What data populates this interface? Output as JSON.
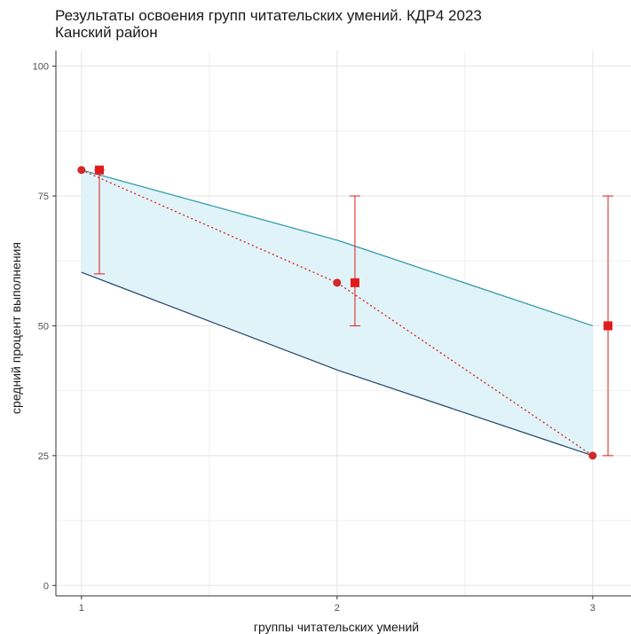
{
  "title_line1": "Результаты освоения групп читательских умений. КДР4 2023",
  "title_line2": "Канский район",
  "colors": {
    "band_fill": "#dff3f8",
    "upper_line": "#2b97a8",
    "lower_line": "#28456b",
    "accent": "#e11b1b",
    "dot": "#d12a2a"
  },
  "chart_data": {
    "type": "line",
    "title": "Результаты освоения групп читательских умений. КДР4 2023",
    "subtitle": "Канский район",
    "xlabel": "группы читательских умений",
    "ylabel": "средний процент выполнения",
    "x_ticks": [
      "1",
      "2",
      "3"
    ],
    "y_ticks": [
      "0",
      "25",
      "50",
      "75",
      "100"
    ],
    "xlim": [
      0.9,
      3.15
    ],
    "ylim": [
      -2,
      103
    ],
    "grid": true,
    "band": {
      "x": [
        1,
        2,
        3
      ],
      "upper": [
        80,
        66.5,
        50
      ],
      "lower": [
        60.3,
        41.5,
        25
      ]
    },
    "points": {
      "x": [
        1,
        2,
        3
      ],
      "y": [
        80,
        58.3,
        25
      ]
    },
    "squares": {
      "x": [
        1.07,
        2.07,
        3.06
      ],
      "y": [
        80,
        58.3,
        50
      ]
    },
    "errorbars": {
      "x": [
        1.07,
        2.07,
        3.06
      ],
      "low": [
        60,
        50,
        25
      ],
      "high": [
        80,
        75,
        75
      ]
    }
  }
}
